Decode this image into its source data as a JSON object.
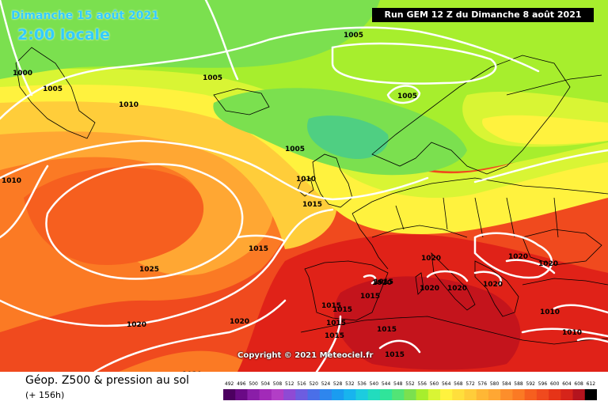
{
  "header": {
    "date": "Dimanche 15 août 2021",
    "hour": "2:00 locale",
    "run": "Run GEM 12 Z du Dimanche 8 août 2021"
  },
  "copyright": "Copyright © 2021 Meteociel.fr",
  "footer": {
    "title": "Géop. Z500 & pression au sol",
    "subtitle": "(+ 156h)"
  },
  "colors": {
    "ocean": "#f5661e",
    "green_dark": "#4fcf82",
    "green": "#7be04f",
    "light_green": "#a7ee2d",
    "yellow_green": "#d9f534",
    "yellow": "#fff23e",
    "light_orange": "#ffcd3a",
    "orange": "#ffa733",
    "dark_orange": "#fb7a24",
    "red_orange": "#f04a1e",
    "red": "#e02218",
    "dark_red": "#c4141c",
    "land_border": "#000000",
    "isobar": "#ffffff"
  },
  "legend": {
    "labels": [
      "492",
      "496",
      "500",
      "504",
      "508",
      "512",
      "516",
      "520",
      "524",
      "528",
      "532",
      "536",
      "540",
      "544",
      "548",
      "552",
      "556",
      "560",
      "564",
      "568",
      "572",
      "576",
      "580",
      "584",
      "588",
      "592",
      "596",
      "600",
      "604",
      "608",
      "612"
    ],
    "colors": [
      "#4c0060",
      "#6a0a86",
      "#8a1ea8",
      "#a22ab8",
      "#b23ec6",
      "#8f4ad4",
      "#6d5de0",
      "#4a6fe8",
      "#2e86ee",
      "#1a9cf0",
      "#18b4ee",
      "#1cccdf",
      "#22dcbe",
      "#30e49a",
      "#52e476",
      "#7be04f",
      "#a7ee2d",
      "#d9f534",
      "#fff23e",
      "#ffdf3c",
      "#ffcd3a",
      "#ffb735",
      "#ffa733",
      "#fd8e2b",
      "#fb7a24",
      "#f65f1f",
      "#f04a1e",
      "#e63418",
      "#d6241a",
      "#b4141e",
      "#000000"
    ]
  },
  "pressure_labels": [
    {
      "text": "1000"
    },
    {
      "text": "1005"
    },
    {
      "text": "1005"
    },
    {
      "text": "1005"
    },
    {
      "text": "1005"
    },
    {
      "text": "1005"
    },
    {
      "text": "1010"
    },
    {
      "text": "1010"
    },
    {
      "text": "1010"
    },
    {
      "text": "1015"
    },
    {
      "text": "1015"
    },
    {
      "text": "1025"
    },
    {
      "text": "1020"
    },
    {
      "text": "1020"
    },
    {
      "text": "1020"
    },
    {
      "text": "1020"
    },
    {
      "text": "1020"
    },
    {
      "text": "1020"
    },
    {
      "text": "1020"
    },
    {
      "text": "1020"
    },
    {
      "text": "1020"
    },
    {
      "text": "1020"
    },
    {
      "text": "1015"
    },
    {
      "text": "1015"
    },
    {
      "text": "1015"
    },
    {
      "text": "1015"
    },
    {
      "text": "1015"
    },
    {
      "text": "1015"
    },
    {
      "text": "1015"
    },
    {
      "text": "1015"
    },
    {
      "text": "1010"
    },
    {
      "text": "1010"
    }
  ]
}
